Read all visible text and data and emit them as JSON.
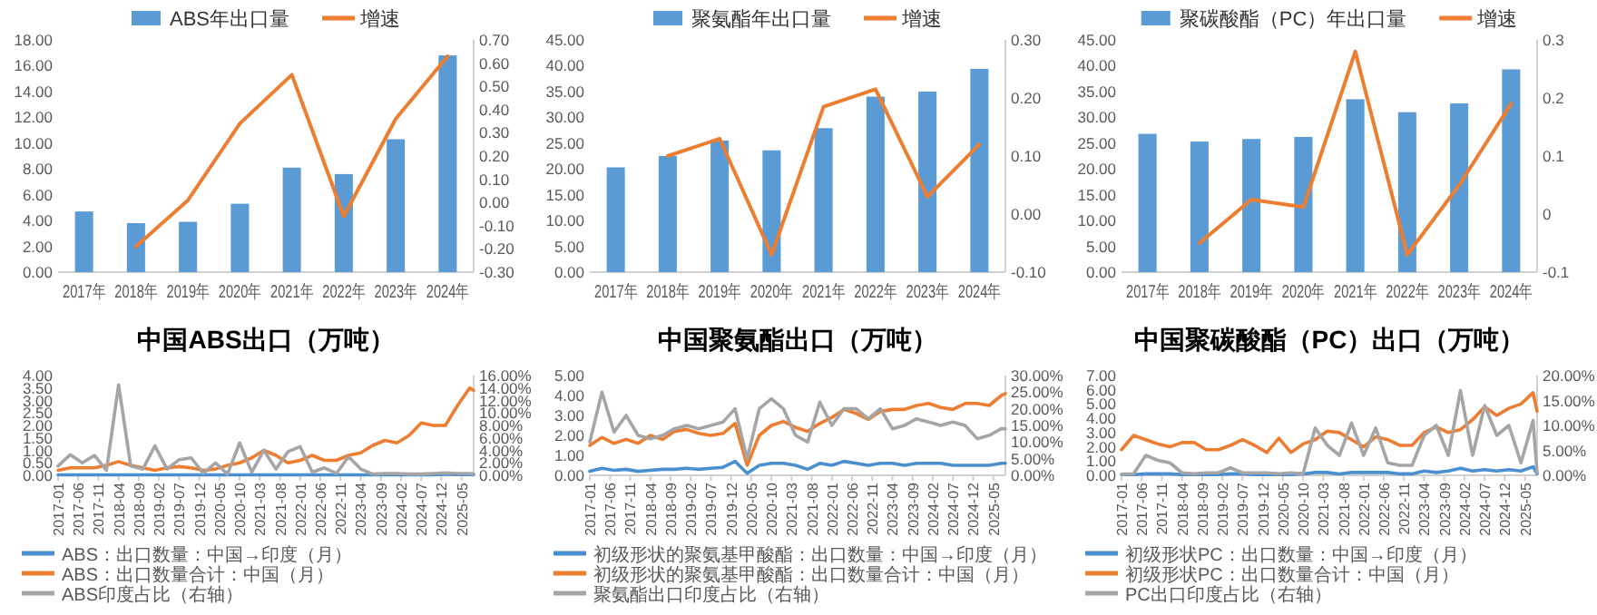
{
  "chart_data": [
    {
      "type": "bar",
      "categories": [
        "2017年",
        "2018年",
        "2019年",
        "2020年",
        "2021年",
        "2022年",
        "2023年",
        "2024年"
      ],
      "legend": "top",
      "series": [
        {
          "name": "ABS年出口量",
          "color": "#5b9bd5",
          "values": [
            4.7,
            3.8,
            3.9,
            5.3,
            8.1,
            7.6,
            10.3,
            16.8
          ]
        },
        {
          "name": "增速",
          "type": "line",
          "axis": "y2",
          "color": "#ed7d31",
          "values": [
            null,
            -0.19,
            0.01,
            0.34,
            0.55,
            -0.06,
            0.36,
            0.63
          ]
        }
      ],
      "ylim": [
        0,
        18
      ],
      "yticks": [
        {
          "value": 0,
          "label": "0.00"
        },
        {
          "value": 2,
          "label": "2.00"
        },
        {
          "value": 4,
          "label": "4.00"
        },
        {
          "value": 6,
          "label": "6.00"
        },
        {
          "value": 8,
          "label": "8.00"
        },
        {
          "value": 10,
          "label": "10.00"
        },
        {
          "value": 12,
          "label": "12.00"
        },
        {
          "value": 14,
          "label": "14.00"
        },
        {
          "value": 16,
          "label": "16.00"
        },
        {
          "value": 18,
          "label": "18.00"
        }
      ],
      "y2lim": [
        -0.3,
        0.7
      ],
      "y2ticks": [
        {
          "value": -0.3,
          "label": "-0.30"
        },
        {
          "value": -0.2,
          "label": "-0.20"
        },
        {
          "value": -0.1,
          "label": "-0.10"
        },
        {
          "value": 0,
          "label": "0.00"
        },
        {
          "value": 0.1,
          "label": "0.10"
        },
        {
          "value": 0.2,
          "label": "0.20"
        },
        {
          "value": 0.3,
          "label": "0.30"
        },
        {
          "value": 0.4,
          "label": "0.40"
        },
        {
          "value": 0.5,
          "label": "0.50"
        },
        {
          "value": 0.6,
          "label": "0.60"
        },
        {
          "value": 0.7,
          "label": "0.70"
        }
      ]
    },
    {
      "type": "bar",
      "categories": [
        "2017年",
        "2018年",
        "2019年",
        "2020年",
        "2021年",
        "2022年",
        "2023年",
        "2024年"
      ],
      "legend": "top",
      "series": [
        {
          "name": "聚氨酯年出口量",
          "color": "#5b9bd5",
          "values": [
            20.3,
            22.5,
            25.5,
            23.6,
            27.9,
            34.0,
            35.0,
            39.4
          ]
        },
        {
          "name": "增速",
          "type": "line",
          "axis": "y2",
          "color": "#ed7d31",
          "values": [
            null,
            0.1,
            0.13,
            -0.07,
            0.185,
            0.215,
            0.03,
            0.12
          ]
        }
      ],
      "ylim": [
        0,
        45
      ],
      "yticks": [
        {
          "value": 0,
          "label": "0.00"
        },
        {
          "value": 5,
          "label": "5.00"
        },
        {
          "value": 10,
          "label": "10.00"
        },
        {
          "value": 15,
          "label": "15.00"
        },
        {
          "value": 20,
          "label": "20.00"
        },
        {
          "value": 25,
          "label": "25.00"
        },
        {
          "value": 30,
          "label": "30.00"
        },
        {
          "value": 35,
          "label": "35.00"
        },
        {
          "value": 40,
          "label": "40.00"
        },
        {
          "value": 45,
          "label": "45.00"
        }
      ],
      "y2lim": [
        -0.1,
        0.3
      ],
      "y2ticks": [
        {
          "value": -0.1,
          "label": "-0.10"
        },
        {
          "value": 0,
          "label": "0.00"
        },
        {
          "value": 0.1,
          "label": "0.10"
        },
        {
          "value": 0.2,
          "label": "0.20"
        },
        {
          "value": 0.3,
          "label": "0.30"
        }
      ]
    },
    {
      "type": "bar",
      "categories": [
        "2017年",
        "2018年",
        "2019年",
        "2020年",
        "2021年",
        "2022年",
        "2023年",
        "2024年"
      ],
      "legend": "top",
      "series": [
        {
          "name": "聚碳酸酯（PC）年出口量",
          "color": "#5b9bd5",
          "values": [
            26.8,
            25.3,
            25.8,
            26.2,
            33.5,
            31.0,
            32.7,
            39.3
          ]
        },
        {
          "name": "增速",
          "type": "line",
          "axis": "y2",
          "color": "#ed7d31",
          "values": [
            null,
            -0.05,
            0.025,
            0.012,
            0.28,
            -0.07,
            0.05,
            0.19
          ]
        }
      ],
      "ylim": [
        0,
        45
      ],
      "yticks": [
        {
          "value": 0,
          "label": "0.00"
        },
        {
          "value": 5,
          "label": "5.00"
        },
        {
          "value": 10,
          "label": "10.00"
        },
        {
          "value": 15,
          "label": "15.00"
        },
        {
          "value": 20,
          "label": "20.00"
        },
        {
          "value": 25,
          "label": "25.00"
        },
        {
          "value": 30,
          "label": "30.00"
        },
        {
          "value": 35,
          "label": "35.00"
        },
        {
          "value": 40,
          "label": "40.00"
        },
        {
          "value": 45,
          "label": "45.00"
        }
      ],
      "y2lim": [
        -0.1,
        0.3
      ],
      "y2ticks": [
        -0.1,
        0,
        0.1,
        0.2,
        0.3
      ]
    },
    {
      "type": "line",
      "title": "中国ABS出口（万吨）",
      "legend": "bottom",
      "x": [
        "2017-01",
        "2017-04",
        "2017-07",
        "2017-10",
        "2018-01",
        "2018-04",
        "2018-07",
        "2018-10",
        "2019-01",
        "2019-04",
        "2019-07",
        "2019-10",
        "2020-01",
        "2020-04",
        "2020-07",
        "2020-10",
        "2021-01",
        "2021-04",
        "2021-07",
        "2021-10",
        "2022-01",
        "2022-04",
        "2022-07",
        "2022-10",
        "2023-01",
        "2023-04",
        "2023-07",
        "2023-10",
        "2024-01",
        "2024-04",
        "2024-07",
        "2024-10",
        "2025-01",
        "2025-04",
        "2025-07",
        "2025-08"
      ],
      "series": [
        {
          "name": "ABS：出口数量：中国→印度（月）",
          "color": "#4a8fcf",
          "values": [
            0.02,
            0.02,
            0.02,
            0.02,
            0.02,
            0.02,
            0.02,
            0.02,
            0.02,
            0.02,
            0.02,
            0.02,
            0.02,
            0.02,
            0.02,
            0.02,
            0.02,
            0.02,
            0.02,
            0.02,
            0.02,
            0.02,
            0.02,
            0.02,
            0.02,
            0.02,
            0.02,
            0.02,
            0.02,
            0.02,
            0.02,
            0.02,
            0.05,
            0.03,
            0.03,
            0.02
          ]
        },
        {
          "name": "ABS：出口数量合计：中国（月）",
          "color": "#ed7d31",
          "values": [
            0.2,
            0.3,
            0.3,
            0.3,
            0.4,
            0.55,
            0.4,
            0.3,
            0.2,
            0.3,
            0.35,
            0.3,
            0.2,
            0.25,
            0.4,
            0.5,
            0.7,
            1.0,
            0.8,
            0.5,
            0.6,
            0.8,
            0.6,
            0.6,
            0.8,
            0.9,
            1.2,
            1.4,
            1.3,
            1.6,
            2.1,
            2.0,
            2.0,
            2.8,
            3.5,
            3.4
          ]
        },
        {
          "name": "ABS印度占比（右轴）",
          "axis": "y2",
          "color": "#a5a5a5",
          "values": [
            1.5,
            3.3,
            2.0,
            3.2,
            0.8,
            14.5,
            1.5,
            1.0,
            4.7,
            1.0,
            2.5,
            2.8,
            0.3,
            2.0,
            0.2,
            5.2,
            0.5,
            4.0,
            1.0,
            3.8,
            4.6,
            0.5,
            1.2,
            0.3,
            3.0,
            1.0,
            0.2,
            0.3,
            0.3,
            0.2,
            0.2,
            0.3,
            0.4,
            0.3,
            0.3,
            0.2
          ]
        }
      ],
      "xlim": [
        "2017-01",
        "2025-08"
      ],
      "xticks": [
        "2017-01",
        "2017-06",
        "2017-11",
        "2018-04",
        "2018-09",
        "2019-02",
        "2019-07",
        "2019-12",
        "2020-05",
        "2020-10",
        "2021-03",
        "2021-08",
        "2022-01",
        "2022-06",
        "2022-11",
        "2023-04",
        "2023-09",
        "2024-02",
        "2024-07",
        "2024-12",
        "2025-05"
      ],
      "ylim": [
        0,
        4
      ],
      "yticks": [
        {
          "value": 0,
          "label": "0.00"
        },
        {
          "value": 0.5,
          "label": "0.50"
        },
        {
          "value": 1,
          "label": "1.00"
        },
        {
          "value": 1.5,
          "label": "1.50"
        },
        {
          "value": 2,
          "label": "2.00"
        },
        {
          "value": 2.5,
          "label": "2.50"
        },
        {
          "value": 3,
          "label": "3.00"
        },
        {
          "value": 3.5,
          "label": "3.50"
        },
        {
          "value": 4,
          "label": "4.00"
        }
      ],
      "y2lim": [
        0,
        16
      ],
      "y2ticks": [
        {
          "value": 0,
          "label": "0.00%"
        },
        {
          "value": 2,
          "label": "2.00%"
        },
        {
          "value": 4,
          "label": "4.00%"
        },
        {
          "value": 6,
          "label": "6.00%"
        },
        {
          "value": 8,
          "label": "8.00%"
        },
        {
          "value": 10,
          "label": "10.00%"
        },
        {
          "value": 12,
          "label": "12.00%"
        },
        {
          "value": 14,
          "label": "14.00%"
        },
        {
          "value": 16,
          "label": "16.00%"
        }
      ]
    },
    {
      "type": "line",
      "title": "中国聚氨酯出口（万吨）",
      "legend": "bottom",
      "x": [
        "2017-01",
        "2017-04",
        "2017-07",
        "2017-10",
        "2018-01",
        "2018-04",
        "2018-07",
        "2018-10",
        "2019-01",
        "2019-04",
        "2019-07",
        "2019-10",
        "2020-01",
        "2020-04",
        "2020-07",
        "2020-10",
        "2021-01",
        "2021-04",
        "2021-07",
        "2021-10",
        "2022-01",
        "2022-04",
        "2022-07",
        "2022-10",
        "2023-01",
        "2023-04",
        "2023-07",
        "2023-10",
        "2024-01",
        "2024-04",
        "2024-07",
        "2024-10",
        "2025-01",
        "2025-04",
        "2025-07",
        "2025-08"
      ],
      "series": [
        {
          "name": "初级形状的聚氨基甲酸酯：出口数量：中国→印度（月）",
          "color": "#4a8fcf",
          "values": [
            0.2,
            0.35,
            0.25,
            0.3,
            0.2,
            0.25,
            0.3,
            0.3,
            0.35,
            0.3,
            0.35,
            0.4,
            0.7,
            0.1,
            0.5,
            0.6,
            0.6,
            0.5,
            0.3,
            0.6,
            0.5,
            0.7,
            0.6,
            0.5,
            0.6,
            0.6,
            0.5,
            0.6,
            0.6,
            0.6,
            0.5,
            0.5,
            0.5,
            0.5,
            0.6,
            0.6
          ]
        },
        {
          "name": "初级形状的聚氨基甲酸酯：出口数量合计：中国（月）",
          "color": "#ed7d31",
          "values": [
            1.5,
            1.9,
            1.6,
            1.8,
            1.6,
            2.0,
            1.8,
            2.2,
            2.3,
            2.1,
            2.0,
            2.1,
            2.6,
            0.5,
            2.0,
            2.5,
            2.7,
            2.4,
            2.2,
            2.6,
            2.9,
            3.3,
            3.1,
            2.8,
            3.2,
            3.3,
            3.3,
            3.5,
            3.6,
            3.4,
            3.3,
            3.6,
            3.6,
            3.5,
            4.0,
            4.1
          ]
        },
        {
          "name": "聚氨酯出口印度占比（右轴）",
          "axis": "y2",
          "color": "#a5a5a5",
          "values": [
            10,
            25,
            13,
            18,
            12,
            11,
            12,
            14,
            15,
            14,
            15,
            16,
            20,
            5,
            20,
            23,
            20,
            12,
            10,
            22,
            15,
            20,
            20,
            17,
            20,
            14,
            15,
            17,
            16,
            15,
            16,
            15,
            11,
            12,
            14,
            14
          ]
        }
      ],
      "xlim": [
        "2017-01",
        "2025-08"
      ],
      "xticks": [
        "2017-01",
        "2017-06",
        "2017-11",
        "2018-04",
        "2018-09",
        "2019-02",
        "2019-07",
        "2019-12",
        "2020-05",
        "2020-10",
        "2021-03",
        "2021-08",
        "2022-01",
        "2022-06",
        "2022-11",
        "2023-04",
        "2023-09",
        "2024-02",
        "2024-07",
        "2024-12",
        "2025-05"
      ],
      "ylim": [
        0,
        5
      ],
      "yticks": [
        {
          "value": 0,
          "label": "0.00"
        },
        {
          "value": 1,
          "label": "1.00"
        },
        {
          "value": 2,
          "label": "2.00"
        },
        {
          "value": 3,
          "label": "3.00"
        },
        {
          "value": 4,
          "label": "4.00"
        },
        {
          "value": 5,
          "label": "5.00"
        }
      ],
      "y2lim": [
        0,
        30
      ],
      "y2ticks": [
        {
          "value": 0,
          "label": "0.00%"
        },
        {
          "value": 5,
          "label": "5.00%"
        },
        {
          "value": 10,
          "label": "10.00%"
        },
        {
          "value": 15,
          "label": "15.00%"
        },
        {
          "value": 20,
          "label": "20.00%"
        },
        {
          "value": 25,
          "label": "25.00%"
        },
        {
          "value": 30,
          "label": "30.00%"
        }
      ]
    },
    {
      "type": "line",
      "title": "中国聚碳酸酯（PC）出口（万吨）",
      "legend": "bottom",
      "x": [
        "2017-01",
        "2017-04",
        "2017-07",
        "2017-10",
        "2018-01",
        "2018-04",
        "2018-07",
        "2018-10",
        "2019-01",
        "2019-04",
        "2019-07",
        "2019-10",
        "2020-01",
        "2020-04",
        "2020-07",
        "2020-10",
        "2021-01",
        "2021-04",
        "2021-07",
        "2021-10",
        "2022-01",
        "2022-04",
        "2022-07",
        "2022-10",
        "2023-01",
        "2023-04",
        "2023-07",
        "2023-10",
        "2024-01",
        "2024-04",
        "2024-07",
        "2024-10",
        "2025-01",
        "2025-04",
        "2025-07",
        "2025-08"
      ],
      "series": [
        {
          "name": "初级形状PC：出口数量：中国→印度（月）",
          "color": "#4a8fcf",
          "values": [
            0.05,
            0.05,
            0.1,
            0.1,
            0.1,
            0.05,
            0.05,
            0.05,
            0.05,
            0.1,
            0.1,
            0.05,
            0.05,
            0.05,
            0.05,
            0.1,
            0.2,
            0.2,
            0.1,
            0.2,
            0.2,
            0.2,
            0.2,
            0.1,
            0.1,
            0.3,
            0.2,
            0.3,
            0.5,
            0.3,
            0.4,
            0.3,
            0.4,
            0.3,
            0.6,
            0.1
          ]
        },
        {
          "name": "初级形状PC：出口数量合计：中国（月）",
          "color": "#ed7d31",
          "values": [
            1.8,
            2.8,
            2.5,
            2.2,
            2.0,
            2.3,
            2.3,
            1.8,
            1.8,
            2.1,
            2.5,
            2.1,
            1.6,
            2.6,
            1.6,
            2.2,
            2.5,
            3.1,
            3.0,
            2.5,
            2.0,
            2.7,
            2.5,
            2.1,
            2.1,
            3.0,
            3.4,
            3.0,
            3.2,
            3.9,
            4.8,
            4.2,
            4.7,
            5.0,
            5.8,
            4.5
          ]
        },
        {
          "name": "PC出口印度占比（右轴）",
          "axis": "y2",
          "color": "#a5a5a5",
          "values": [
            0.2,
            0.3,
            4.0,
            3.0,
            2.5,
            0.5,
            0.3,
            0.5,
            0.5,
            1.5,
            0.5,
            0.5,
            0.5,
            0.3,
            0.5,
            0.3,
            9.5,
            6.0,
            4.0,
            10.5,
            4.0,
            9.5,
            2.5,
            2.0,
            2.0,
            8.0,
            10.0,
            4.0,
            17.0,
            4.0,
            14.0,
            8.0,
            10.0,
            2.5,
            11.0,
            0.5
          ]
        }
      ],
      "xlim": [
        "2017-01",
        "2025-08"
      ],
      "xticks": [
        "2017-01",
        "2017-06",
        "2017-11",
        "2018-04",
        "2018-09",
        "2019-02",
        "2019-07",
        "2019-12",
        "2020-05",
        "2020-10",
        "2021-03",
        "2021-08",
        "2022-01",
        "2022-06",
        "2022-11",
        "2023-04",
        "2023-09",
        "2024-02",
        "2024-07",
        "2024-12",
        "2025-05"
      ],
      "ylim": [
        0,
        7
      ],
      "yticks": [
        {
          "value": 0,
          "label": "0.00"
        },
        {
          "value": 1,
          "label": "1.00"
        },
        {
          "value": 2,
          "label": "2.00"
        },
        {
          "value": 3,
          "label": "3.00"
        },
        {
          "value": 4,
          "label": "4.00"
        },
        {
          "value": 5,
          "label": "5.00"
        },
        {
          "value": 6,
          "label": "6.00"
        },
        {
          "value": 7,
          "label": "7.00"
        }
      ],
      "y2lim": [
        0,
        20
      ],
      "y2ticks": [
        {
          "value": 0,
          "label": "0.00%"
        },
        {
          "value": 5,
          "label": "5.00%"
        },
        {
          "value": 10,
          "label": "10.00%"
        },
        {
          "value": 15,
          "label": "15.00%"
        },
        {
          "value": 20,
          "label": "20.00%"
        }
      ]
    }
  ]
}
